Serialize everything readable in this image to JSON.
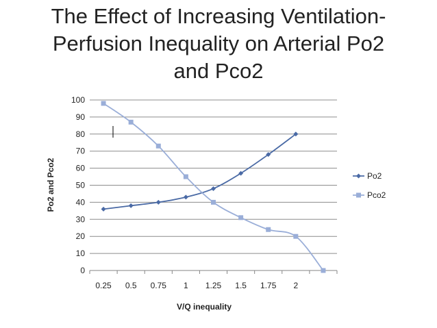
{
  "chart_data": {
    "type": "line",
    "title_lines": [
      "The Effect of Increasing Ventilation-",
      "Perfusion Inequality on Arterial Po2",
      "and Pco2"
    ],
    "xlabel": "V/Q inequality",
    "ylabel": "Po2 and Pco2",
    "categories": [
      "0.25",
      "0.5",
      "0.75",
      "1",
      "1.25",
      "1.5",
      "1.75",
      "2",
      ""
    ],
    "ylim": [
      0,
      100
    ],
    "yticks": [
      0,
      10,
      20,
      30,
      40,
      50,
      60,
      70,
      80,
      90,
      100
    ],
    "grid": true,
    "legend_position": "right",
    "series": [
      {
        "name": "Po2",
        "color": "#4a6aa5",
        "marker": "diamond",
        "values": [
          36,
          38,
          40,
          43,
          48,
          57,
          68,
          80,
          null
        ]
      },
      {
        "name": "Pco2",
        "color": "#9aaed8",
        "marker": "square",
        "values": [
          98,
          87,
          73,
          55,
          40,
          31,
          24,
          20,
          0
        ]
      }
    ]
  }
}
